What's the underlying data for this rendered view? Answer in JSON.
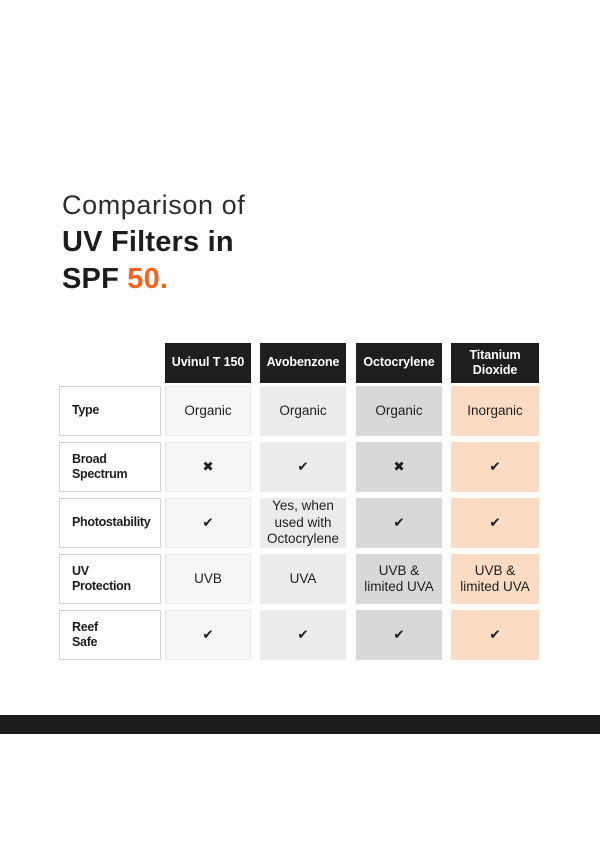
{
  "title": {
    "line1": "Comparison of",
    "line2": "UV Filters in",
    "line3_prefix": "SPF ",
    "line3_accent": "50.",
    "accent_color": "#F4641D"
  },
  "table": {
    "icons": {
      "check": "✔",
      "cross": "✖"
    },
    "header_bg": "#1E1E1E",
    "column_tints": [
      "#F6F6F6",
      "#EBEBEB",
      "#D8D8D8",
      "#FBDCC3"
    ],
    "columns": [
      {
        "name": "Uvinul T 150"
      },
      {
        "name": "Avobenzone"
      },
      {
        "name": "Octocrylene"
      },
      {
        "name": "Titanium\nDioxide"
      }
    ],
    "rows": [
      {
        "label": "Type",
        "values": [
          "Organic",
          "Organic",
          "Organic",
          "Inorganic"
        ]
      },
      {
        "label": "Broad\nSpectrum",
        "values": [
          "cross",
          "check",
          "cross",
          "check"
        ]
      },
      {
        "label": "Photostability",
        "values": [
          "check",
          "Yes, when\nused with\nOctocrylene",
          "check",
          "check"
        ]
      },
      {
        "label": "UV\nProtection",
        "values": [
          "UVB",
          "UVA",
          "UVB &\nlimited UVA",
          "UVB &\nlimited UVA"
        ]
      },
      {
        "label": "Reef\nSafe",
        "values": [
          "check",
          "check",
          "check",
          "check"
        ]
      }
    ]
  },
  "footer_bar_color": "#1D1D1D",
  "chart_data": {
    "type": "table",
    "title": "Comparison of UV Filters in SPF 50.",
    "columns": [
      "Uvinul T 150",
      "Avobenzone",
      "Octocrylene",
      "Titanium Dioxide"
    ],
    "rows": [
      {
        "label": "Type",
        "values": [
          "Organic",
          "Organic",
          "Organic",
          "Inorganic"
        ]
      },
      {
        "label": "Broad Spectrum",
        "values": [
          "no",
          "yes",
          "no",
          "yes"
        ]
      },
      {
        "label": "Photostability",
        "values": [
          "yes",
          "Yes, when used with Octocrylene",
          "yes",
          "yes"
        ]
      },
      {
        "label": "UV Protection",
        "values": [
          "UVB",
          "UVA",
          "UVB & limited UVA",
          "UVB & limited UVA"
        ]
      },
      {
        "label": "Reef Safe",
        "values": [
          "yes",
          "yes",
          "yes",
          "yes"
        ]
      }
    ]
  }
}
